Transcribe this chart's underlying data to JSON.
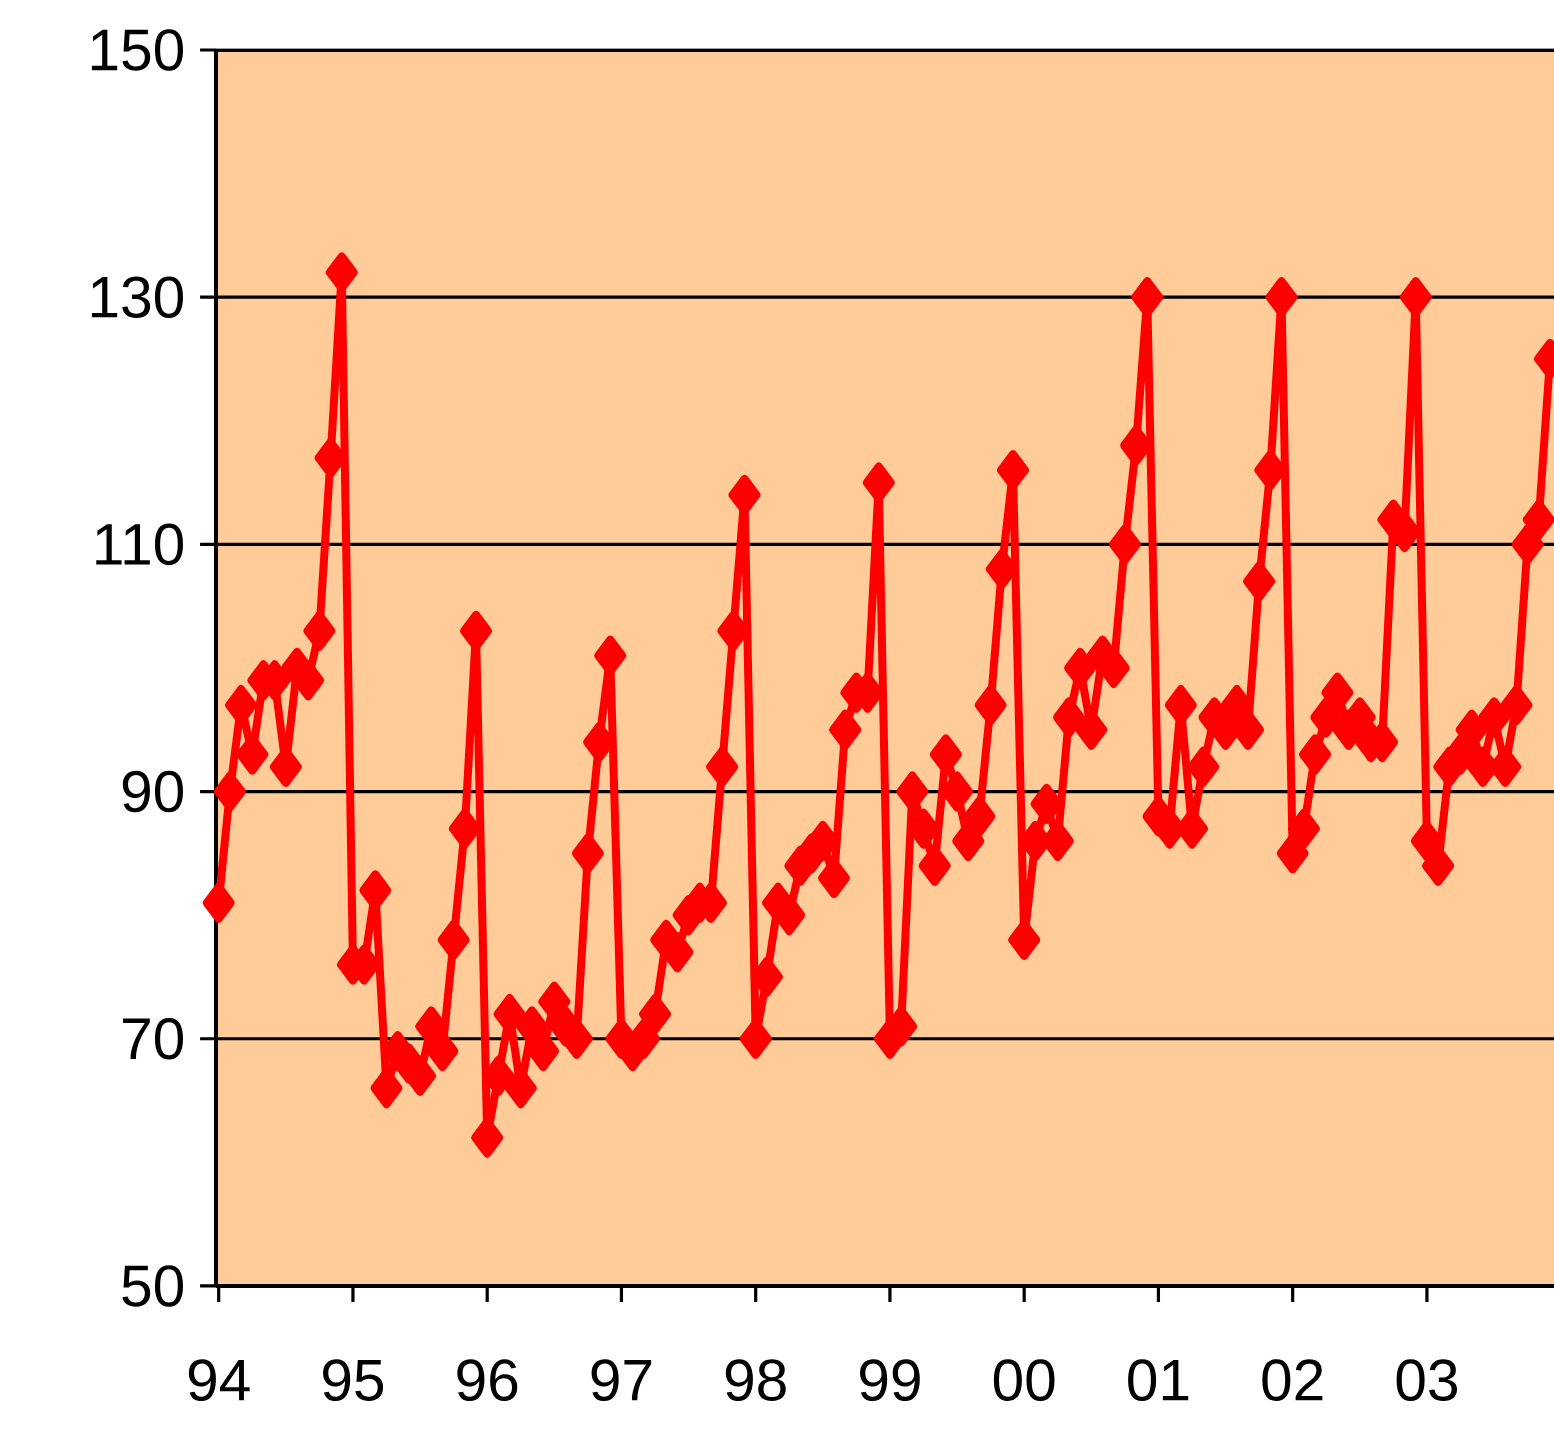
{
  "chart_data": {
    "type": "line",
    "x": [
      "1994-01",
      "1994-02",
      "1994-03",
      "1994-04",
      "1994-05",
      "1994-06",
      "1994-07",
      "1994-08",
      "1994-09",
      "1994-10",
      "1994-11",
      "1994-12",
      "1995-01",
      "1995-02",
      "1995-03",
      "1995-04",
      "1995-05",
      "1995-06",
      "1995-07",
      "1995-08",
      "1995-09",
      "1995-10",
      "1995-11",
      "1995-12",
      "1996-01",
      "1996-02",
      "1996-03",
      "1996-04",
      "1996-05",
      "1996-06",
      "1996-07",
      "1996-08",
      "1996-09",
      "1996-10",
      "1996-11",
      "1996-12",
      "1997-01",
      "1997-02",
      "1997-03",
      "1997-04",
      "1997-05",
      "1997-06",
      "1997-07",
      "1997-08",
      "1997-09",
      "1997-10",
      "1997-11",
      "1997-12",
      "1998-01",
      "1998-02",
      "1998-03",
      "1998-04",
      "1998-05",
      "1998-06",
      "1998-07",
      "1998-08",
      "1998-09",
      "1998-10",
      "1998-11",
      "1998-12",
      "1999-01",
      "1999-02",
      "1999-03",
      "1999-04",
      "1999-05",
      "1999-06",
      "1999-07",
      "1999-08",
      "1999-09",
      "1999-10",
      "1999-11",
      "1999-12",
      "2000-01",
      "2000-02",
      "2000-03",
      "2000-04",
      "2000-05",
      "2000-06",
      "2000-07",
      "2000-08",
      "2000-09",
      "2000-10",
      "2000-11",
      "2000-12",
      "2001-01",
      "2001-02",
      "2001-03",
      "2001-04",
      "2001-05",
      "2001-06",
      "2001-07",
      "2001-08",
      "2001-09",
      "2001-10",
      "2001-11",
      "2001-12",
      "2002-01",
      "2002-02",
      "2002-03",
      "2002-04",
      "2002-05",
      "2002-06",
      "2002-07",
      "2002-08",
      "2002-09",
      "2002-10",
      "2002-11",
      "2002-12",
      "2003-01",
      "2003-02",
      "2003-03",
      "2003-04",
      "2003-05",
      "2003-06",
      "2003-07",
      "2003-08",
      "2003-09",
      "2003-10",
      "2003-11",
      "2003-12"
    ],
    "series": [
      {
        "color": "#ff0000",
        "values": [
          81,
          90,
          97,
          93,
          99,
          99,
          92,
          100,
          99,
          103,
          117,
          132,
          76,
          76,
          82,
          66,
          69,
          68,
          67,
          71,
          69,
          78,
          87,
          103,
          62,
          67,
          72,
          66,
          71,
          69,
          73,
          71,
          70,
          85,
          94,
          101,
          70,
          69,
          70,
          72,
          78,
          77,
          80,
          81,
          81,
          92,
          103,
          114,
          70,
          75,
          81,
          80,
          84,
          85,
          86,
          83,
          95,
          98,
          98,
          115,
          70,
          71,
          90,
          87,
          84,
          93,
          90,
          86,
          88,
          97,
          108,
          116,
          78,
          86,
          89,
          86,
          96,
          100,
          95,
          101,
          100,
          110,
          118,
          130,
          88,
          87,
          97,
          87,
          92,
          96,
          95,
          97,
          95,
          107,
          116,
          130,
          85,
          87,
          93,
          96,
          98,
          95,
          96,
          94,
          94,
          112,
          111,
          130,
          86,
          84,
          92,
          93,
          95,
          92,
          96,
          92,
          97,
          110,
          112,
          125
        ]
      }
    ],
    "xlim": [
      "1994-01",
      "2003-12"
    ],
    "xticks": [
      {
        "value": "1994",
        "label": "94"
      },
      {
        "value": "1995",
        "label": "95"
      },
      {
        "value": "1996",
        "label": "96"
      },
      {
        "value": "1997",
        "label": "97"
      },
      {
        "value": "1998",
        "label": "98"
      },
      {
        "value": "1999",
        "label": "99"
      },
      {
        "value": "2000",
        "label": "00"
      },
      {
        "value": "2001",
        "label": "01"
      },
      {
        "value": "2002",
        "label": "02"
      },
      {
        "value": "2003",
        "label": "03"
      }
    ],
    "ylim": [
      50,
      150
    ],
    "yticks": [
      50,
      70,
      90,
      110,
      130,
      150
    ],
    "grid": "y",
    "marker": "diamond",
    "line_style": "solid"
  }
}
